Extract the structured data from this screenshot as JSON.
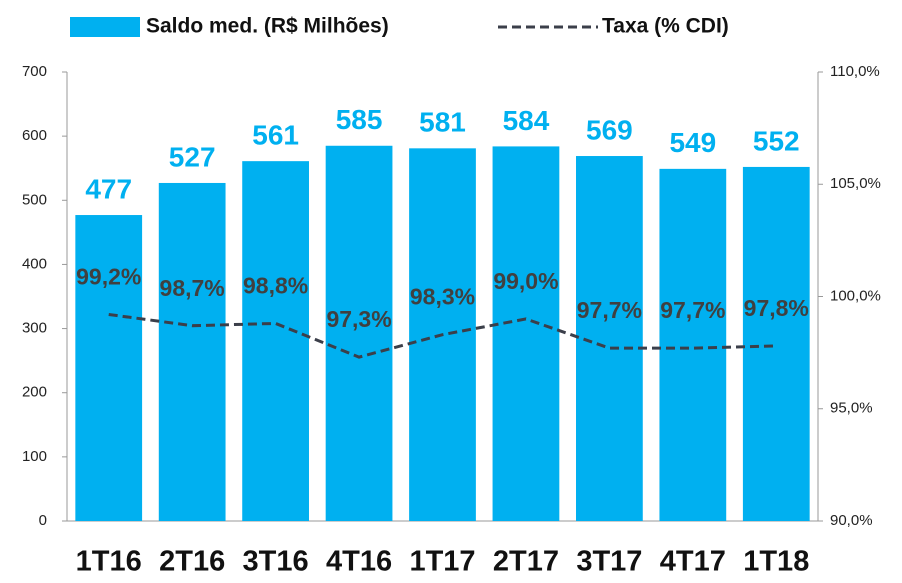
{
  "chart_data": {
    "type": "bar",
    "categories": [
      "1T16",
      "2T16",
      "3T16",
      "4T16",
      "1T17",
      "2T17",
      "3T17",
      "4T17",
      "1T18"
    ],
    "series": [
      {
        "name": "Saldo med. (R$ Milhões)",
        "color": "#00b0f0",
        "type": "bar",
        "values": [
          477,
          527,
          561,
          585,
          581,
          584,
          569,
          549,
          552
        ]
      },
      {
        "name": "Taxa (% CDI)",
        "color": "#3b3f4a",
        "type": "line",
        "axis": "y2",
        "dashed": true,
        "values": [
          99.2,
          98.7,
          98.8,
          97.3,
          98.3,
          99.0,
          97.7,
          97.7,
          97.8
        ],
        "value_labels": [
          "99,2%",
          "98,7%",
          "98,8%",
          "97,3%",
          "98,3%",
          "99,0%",
          "97,7%",
          "97,7%",
          "97,8%"
        ]
      }
    ],
    "ylim": [
      0,
      700
    ],
    "yticks": [
      0,
      100,
      200,
      300,
      400,
      500,
      600,
      700
    ],
    "y2lim": [
      90,
      110
    ],
    "y2ticks": [
      {
        "value": 90,
        "label": "90,0%"
      },
      {
        "value": 95,
        "label": "95,0%"
      },
      {
        "value": 100,
        "label": "100,0%"
      },
      {
        "value": 105,
        "label": "105,0%"
      },
      {
        "value": 110,
        "label": "110,0%"
      }
    ],
    "legend": "top"
  }
}
